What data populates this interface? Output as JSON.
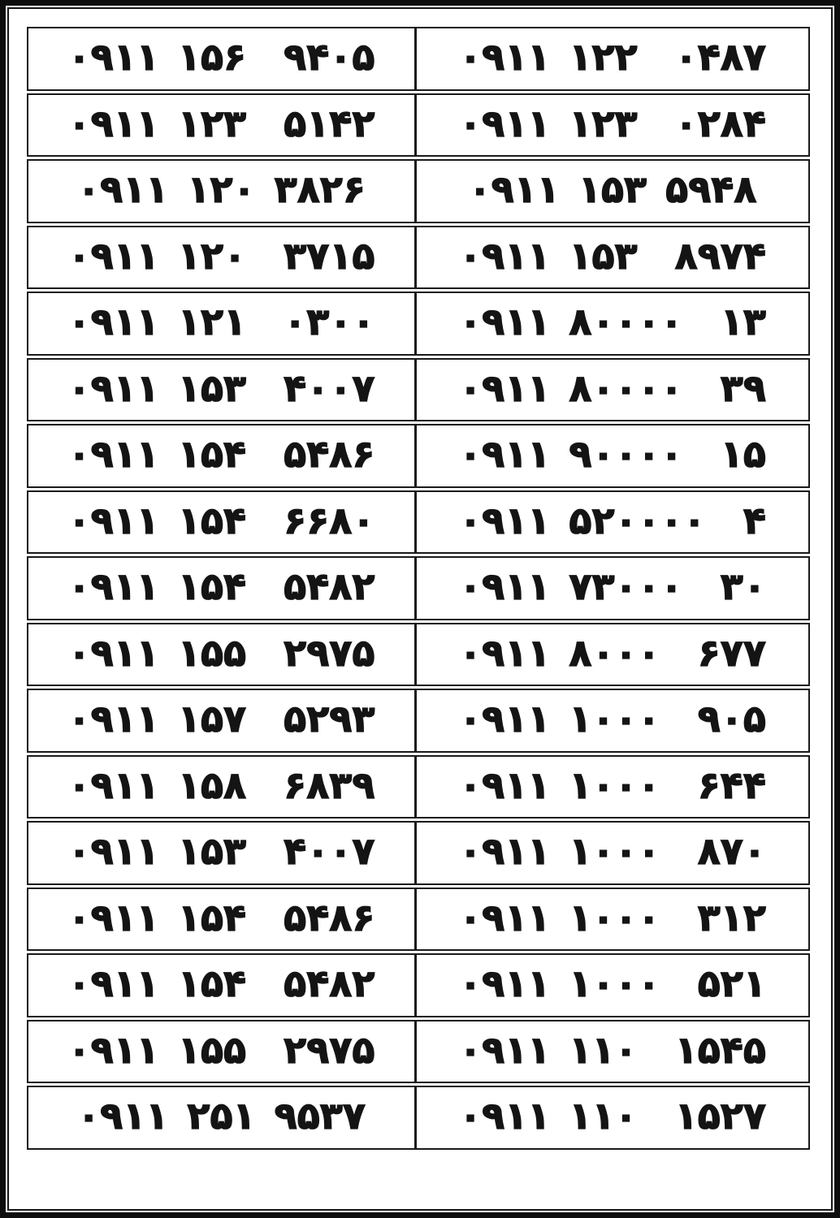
{
  "page": {
    "background_color": "#ffffff",
    "text_color": "#141414",
    "border_color": "#141414",
    "description_colors": {
      "accent": "#000000"
    }
  },
  "table": {
    "columns": 2,
    "row_count": 17,
    "rows": [
      {
        "left": "۰۹۱۱ ۱۵۶  ۹۴۰۵",
        "right": "۰۹۱۱ ۱۲۲  ۰۴۸۷"
      },
      {
        "left": "۰۹۱۱ ۱۲۳  ۵۱۴۲",
        "right": "۰۹۱۱ ۱۲۳  ۰۲۸۴"
      },
      {
        "left": "۰۹۱۱ ۱۲۰ ۳۸۲۶",
        "right": "۰۹۱۱ ۱۵۳ ۵۹۴۸"
      },
      {
        "left": "۰۹۱۱ ۱۲۰  ۳۷۱۵",
        "right": "۰۹۱۱ ۱۵۳  ۸۹۷۴"
      },
      {
        "left": "۰۹۱۱ ۱۲۱  ۰۳۰۰",
        "right": "۰۹۱۱ ۸۰۰۰۰  ۱۳"
      },
      {
        "left": "۰۹۱۱ ۱۵۳  ۴۰۰۷",
        "right": "۰۹۱۱ ۸۰۰۰۰  ۳۹"
      },
      {
        "left": "۰۹۱۱ ۱۵۴  ۵۴۸۶",
        "right": "۰۹۱۱ ۹۰۰۰۰  ۱۵"
      },
      {
        "left": "۰۹۱۱ ۱۵۴  ۶۶۸۰",
        "right": "۰۹۱۱ ۵۲۰۰۰۰  ۴"
      },
      {
        "left": "۰۹۱۱ ۱۵۴  ۵۴۸۲",
        "right": "۰۹۱۱ ۷۳۰۰۰  ۳۰"
      },
      {
        "left": "۰۹۱۱ ۱۵۵  ۲۹۷۵",
        "right": "۰۹۱۱ ۸۰۰۰  ۶۷۷"
      },
      {
        "left": "۰۹۱۱ ۱۵۷  ۵۲۹۳",
        "right": "۰۹۱۱ ۱۰۰۰  ۹۰۵"
      },
      {
        "left": "۰۹۱۱ ۱۵۸  ۶۸۳۹",
        "right": "۰۹۱۱ ۱۰۰۰  ۶۴۴"
      },
      {
        "left": "۰۹۱۱ ۱۵۳  ۴۰۰۷",
        "right": "۰۹۱۱ ۱۰۰۰  ۸۷۰"
      },
      {
        "left": "۰۹۱۱ ۱۵۴  ۵۴۸۶",
        "right": "۰۹۱۱ ۱۰۰۰  ۳۱۲"
      },
      {
        "left": "۰۹۱۱ ۱۵۴  ۵۴۸۲",
        "right": "۰۹۱۱ ۱۰۰۰  ۵۲۱"
      },
      {
        "left": "۰۹۱۱ ۱۵۵  ۲۹۷۵",
        "right": "۰۹۱۱ ۱۱۰  ۱۵۴۵"
      },
      {
        "left": "۰۹۱۱ ۲۵۱ ۹۵۳۷",
        "right": "۰۹۱۱ ۱۱۰  ۱۵۲۷"
      }
    ]
  }
}
